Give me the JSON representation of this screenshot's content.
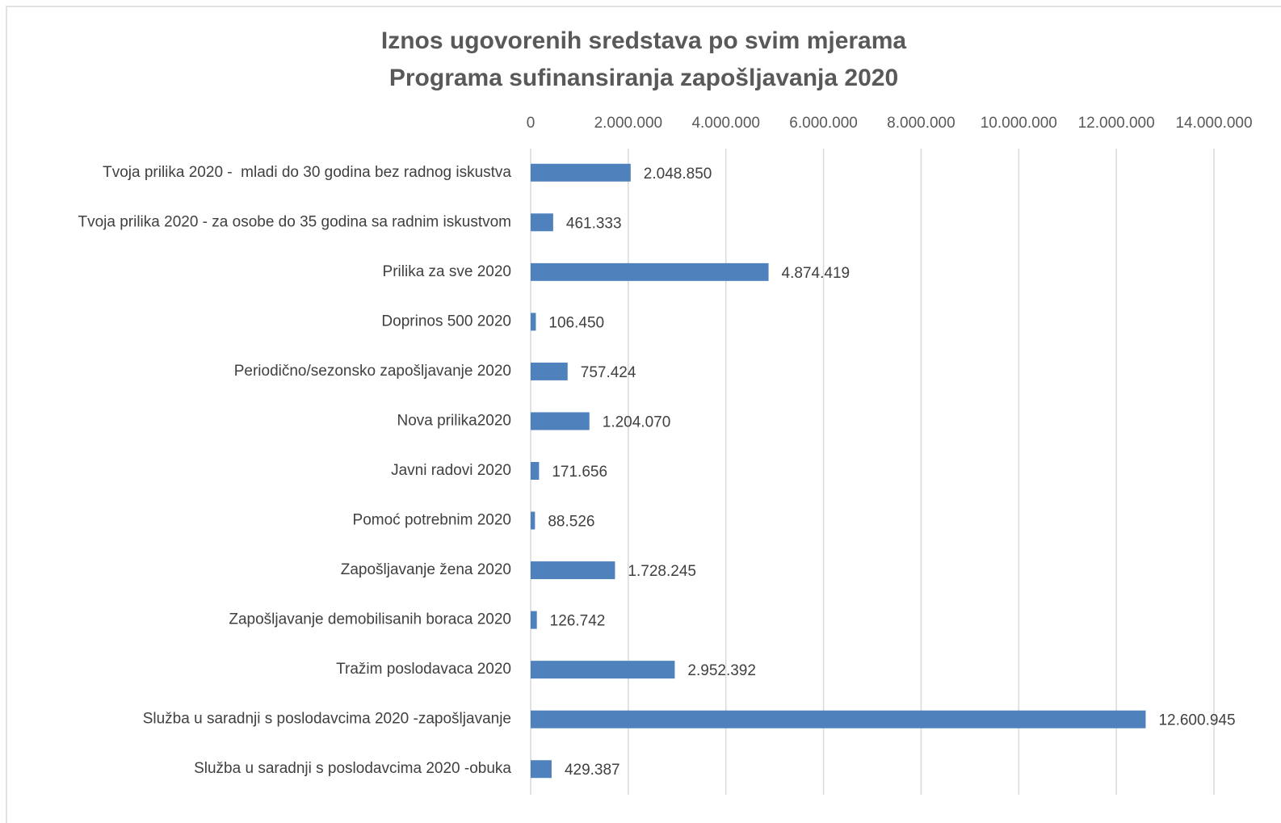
{
  "chart_data": {
    "type": "barh",
    "title": [
      "Iznos ugovorenih sredstava po svim mjerama",
      "Programa sufinansiranja zapošljavanja 2020"
    ],
    "categories": [
      "Tvoja prilika 2020 -  mladi do 30 godina bez radnog iskustva",
      "Tvoja prilika 2020 - za osobe do 35 godina sa radnim iskustvom",
      "Prilika za sve 2020",
      "Doprinos 500 2020",
      "Periodično/sezonsko zapošljavanje 2020",
      "Nova prilika2020",
      "Javni radovi 2020",
      "Pomoć potrebnim 2020",
      "Zapošljavanje žena 2020",
      "Zapošljavanje demobilisanih boraca 2020",
      "Tražim poslodavaca 2020",
      "Služba u saradnji s poslodavcima 2020 -zapošljavanje",
      "Služba u saradnji s poslodavcima 2020 -obuka"
    ],
    "values": [
      2048850,
      461333,
      4874419,
      106450,
      757424,
      1204070,
      171656,
      88526,
      1728245,
      126742,
      2952392,
      12600945,
      429387
    ],
    "value_labels": [
      "2.048.850",
      "461.333",
      "4.874.419",
      "106.450",
      "757.424",
      "1.204.070",
      "171.656",
      "88.526",
      "1.728.245",
      "126.742",
      "2.952.392",
      "12.600.945",
      "429.387"
    ],
    "color": "#4f81bd",
    "xlim": [
      0,
      14000000
    ],
    "xticks": [
      0,
      {
        "value": 2000000,
        "label": "2.000.000"
      },
      {
        "value": 4000000,
        "label": "4.000.000"
      },
      {
        "value": 6000000,
        "label": "6.000.000"
      },
      {
        "value": 8000000,
        "label": "8.000.000"
      },
      {
        "value": 10000000,
        "label": "10.000.000"
      },
      {
        "value": 12000000,
        "label": "12.000.000"
      },
      {
        "value": 14000000,
        "label": "14.000.000"
      }
    ],
    "grid": true
  }
}
